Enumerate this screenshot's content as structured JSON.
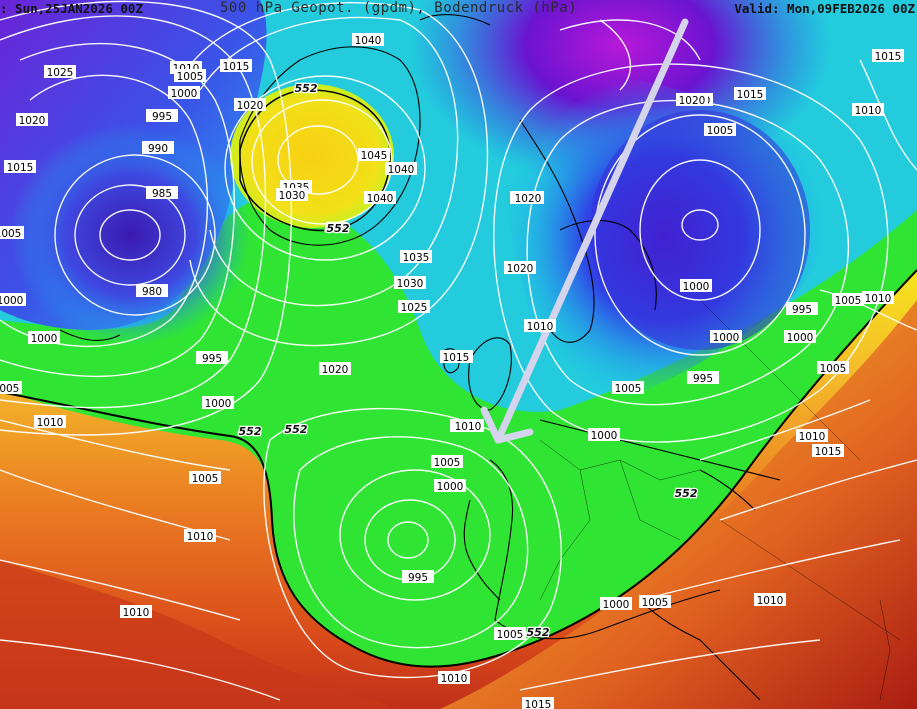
{
  "header": {
    "init": ": Sun,25JAN2026 00Z",
    "title": "500 hPa Geopot. (gpdm), Bodendruck (hPa)",
    "valid": "Valid: Mon,09FEB2026 00Z"
  },
  "colors": {
    "deep_low": "#4a10c8",
    "low": "#2a6af0",
    "cyan": "#1ad0f5",
    "mid_green": "#2ee832",
    "high_yellow": "#f5e21c",
    "orange": "#f09a24",
    "red": "#d84a18",
    "dark_red": "#a01c10",
    "contour": "#ffffff",
    "coast": "#000000",
    "arrow": "#d8d8ee"
  },
  "isobar_labels": [
    "1025",
    "1010",
    "1005",
    "1015",
    "1040",
    "1000",
    "1020",
    "995",
    "990",
    "1020",
    "1015",
    "985",
    "1005",
    "980",
    "1000",
    "1000",
    "995",
    "1035",
    "1030",
    "1045",
    "1040",
    "1040",
    "1035",
    "1030",
    "1025",
    "1020",
    "1020",
    "1015",
    "1010",
    "1005",
    "1000",
    "995",
    "1010",
    "1005",
    "1000",
    "1020",
    "1015",
    "1005",
    "1000",
    "995",
    "1010",
    "1005",
    "1010",
    "1015",
    "1010",
    "1010",
    "1005",
    "1000",
    "995",
    "1000",
    "1005",
    "1010",
    "1020",
    "1015",
    "1010",
    "1020",
    "1010",
    "1005",
    "1000",
    "1005",
    "1010",
    "1015",
    "1010",
    "1005",
    "1000",
    "1015",
    "1020"
  ],
  "geopotential_labels": [
    "552",
    "552",
    "552",
    "552",
    "552",
    "552",
    "552"
  ]
}
